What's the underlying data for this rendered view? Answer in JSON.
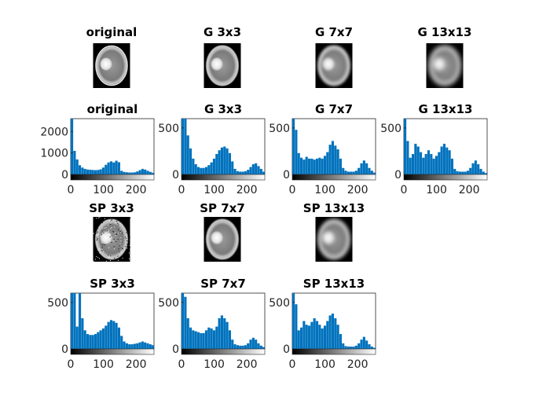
{
  "figure": {
    "colors": {
      "bar": "#0072BD",
      "axis": "#262626",
      "image_bg": "#000000"
    }
  },
  "chart_data": [
    {
      "type": "image",
      "title": "original",
      "blur": 0,
      "noise": 0
    },
    {
      "type": "image",
      "title": "G 3x3",
      "blur": 0.6,
      "noise": 0
    },
    {
      "type": "image",
      "title": "G 7x7",
      "blur": 1.5,
      "noise": 0
    },
    {
      "type": "image",
      "title": "G 13x13",
      "blur": 3.0,
      "noise": 0
    },
    {
      "type": "bar",
      "title": "original",
      "xlim": [
        0,
        255
      ],
      "ylim": [
        0,
        2600
      ],
      "xticks": [
        0,
        100,
        200
      ],
      "yticks": [
        0,
        1000,
        2000
      ],
      "x": [
        0,
        8,
        16,
        24,
        32,
        40,
        48,
        56,
        64,
        72,
        80,
        88,
        96,
        104,
        112,
        120,
        128,
        136,
        144,
        152,
        160,
        168,
        176,
        184,
        192,
        200,
        208,
        216,
        224,
        232,
        240,
        248,
        255
      ],
      "y": [
        2600,
        1100,
        700,
        430,
        320,
        260,
        230,
        220,
        210,
        200,
        210,
        240,
        320,
        450,
        560,
        610,
        560,
        640,
        570,
        170,
        120,
        100,
        90,
        90,
        100,
        140,
        200,
        260,
        230,
        170,
        120,
        80,
        40
      ]
    },
    {
      "type": "bar",
      "title": "G 3x3",
      "xlim": [
        0,
        255
      ],
      "ylim": [
        0,
        600
      ],
      "xticks": [
        0,
        100,
        200
      ],
      "yticks": [
        0,
        500
      ],
      "x": [
        0,
        8,
        16,
        24,
        32,
        40,
        48,
        56,
        64,
        72,
        80,
        88,
        96,
        104,
        112,
        120,
        128,
        136,
        144,
        152,
        160,
        168,
        176,
        184,
        192,
        200,
        208,
        216,
        224,
        232,
        240,
        248,
        255
      ],
      "y": [
        600,
        600,
        420,
        280,
        170,
        110,
        80,
        70,
        70,
        80,
        100,
        130,
        170,
        220,
        260,
        290,
        300,
        280,
        230,
        140,
        60,
        35,
        30,
        30,
        35,
        50,
        80,
        110,
        120,
        90,
        60,
        30,
        15
      ]
    },
    {
      "type": "bar",
      "title": "G 7x7",
      "xlim": [
        0,
        255
      ],
      "ylim": [
        0,
        600
      ],
      "xticks": [
        0,
        100,
        200
      ],
      "yticks": [
        0,
        500
      ],
      "x": [
        0,
        8,
        16,
        24,
        32,
        40,
        48,
        56,
        64,
        72,
        80,
        88,
        96,
        104,
        112,
        120,
        128,
        136,
        144,
        152,
        160,
        168,
        176,
        184,
        192,
        200,
        208,
        216,
        224,
        232,
        240,
        248,
        255
      ],
      "y": [
        600,
        480,
        230,
        180,
        160,
        190,
        170,
        170,
        160,
        170,
        180,
        170,
        200,
        240,
        320,
        360,
        310,
        270,
        170,
        70,
        40,
        30,
        30,
        30,
        40,
        70,
        120,
        150,
        120,
        70,
        40,
        20,
        10
      ]
    },
    {
      "type": "bar",
      "title": "G 13x13",
      "xlim": [
        0,
        255
      ],
      "ylim": [
        0,
        600
      ],
      "xticks": [
        0,
        100,
        200
      ],
      "yticks": [
        0,
        500
      ],
      "x": [
        0,
        8,
        16,
        24,
        32,
        40,
        48,
        56,
        64,
        72,
        80,
        88,
        96,
        104,
        112,
        120,
        128,
        136,
        144,
        152,
        160,
        168,
        176,
        184,
        192,
        200,
        208,
        216,
        224,
        232,
        240,
        248,
        255
      ],
      "y": [
        600,
        360,
        180,
        220,
        330,
        300,
        240,
        180,
        220,
        260,
        220,
        170,
        200,
        240,
        300,
        330,
        290,
        260,
        170,
        60,
        35,
        30,
        30,
        30,
        40,
        70,
        120,
        150,
        110,
        60,
        30,
        15,
        8
      ]
    },
    {
      "type": "image",
      "title": "SP 3x3",
      "blur": 0.4,
      "noise": 0.12
    },
    {
      "type": "image",
      "title": "SP 7x7",
      "blur": 0.9,
      "noise": 0
    },
    {
      "type": "image",
      "title": "SP 13x13",
      "blur": 2.4,
      "noise": 0
    },
    {
      "type": "bar",
      "title": "SP 3x3",
      "xlim": [
        0,
        255
      ],
      "ylim": [
        0,
        600
      ],
      "xticks": [
        0,
        100,
        200
      ],
      "yticks": [
        0,
        500
      ],
      "x": [
        0,
        8,
        16,
        24,
        32,
        40,
        48,
        56,
        64,
        72,
        80,
        88,
        96,
        104,
        112,
        120,
        128,
        136,
        144,
        152,
        160,
        168,
        176,
        184,
        192,
        200,
        208,
        216,
        224,
        232,
        240,
        248,
        255
      ],
      "y": [
        600,
        600,
        240,
        600,
        330,
        200,
        160,
        150,
        150,
        160,
        180,
        200,
        220,
        250,
        290,
        310,
        300,
        280,
        230,
        140,
        80,
        60,
        50,
        50,
        55,
        60,
        70,
        80,
        70,
        60,
        50,
        40,
        30
      ]
    },
    {
      "type": "bar",
      "title": "SP 7x7",
      "xlim": [
        0,
        255
      ],
      "ylim": [
        0,
        600
      ],
      "xticks": [
        0,
        100,
        200
      ],
      "yticks": [
        0,
        500
      ],
      "x": [
        0,
        8,
        16,
        24,
        32,
        40,
        48,
        56,
        64,
        72,
        80,
        88,
        96,
        104,
        112,
        120,
        128,
        136,
        144,
        152,
        160,
        168,
        176,
        184,
        192,
        200,
        208,
        216,
        224,
        232,
        240,
        248,
        255
      ],
      "y": [
        600,
        560,
        330,
        230,
        200,
        190,
        180,
        170,
        170,
        200,
        230,
        220,
        200,
        240,
        330,
        360,
        330,
        290,
        200,
        100,
        50,
        40,
        35,
        35,
        40,
        60,
        100,
        120,
        100,
        60,
        35,
        20,
        10
      ]
    },
    {
      "type": "bar",
      "title": "SP 13x13",
      "xlim": [
        0,
        255
      ],
      "ylim": [
        0,
        600
      ],
      "xticks": [
        0,
        100,
        200
      ],
      "yticks": [
        0,
        500
      ],
      "x": [
        0,
        8,
        16,
        24,
        32,
        40,
        48,
        56,
        64,
        72,
        80,
        88,
        96,
        104,
        112,
        120,
        128,
        136,
        144,
        152,
        160,
        168,
        176,
        184,
        192,
        200,
        208,
        216,
        224,
        232,
        240,
        248,
        255
      ],
      "y": [
        600,
        480,
        200,
        230,
        300,
        260,
        250,
        290,
        330,
        300,
        260,
        220,
        250,
        300,
        360,
        380,
        330,
        260,
        160,
        60,
        30,
        25,
        25,
        25,
        35,
        60,
        100,
        130,
        90,
        50,
        25,
        12,
        6
      ]
    }
  ]
}
